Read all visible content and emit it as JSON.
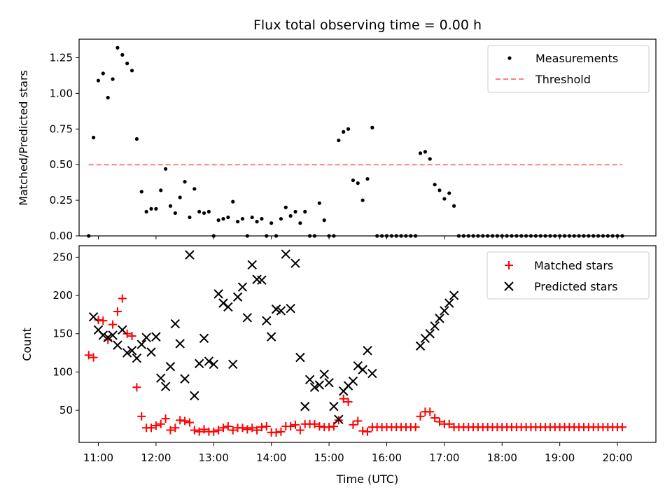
{
  "chart_data": [
    {
      "type": "scatter",
      "title": "Flux total observing time = 0.00 h",
      "ylabel": "Matched/Predicted stars",
      "xlabel": "",
      "xlim": [
        "10:40",
        "20:40"
      ],
      "ylim": [
        0,
        1.38
      ],
      "yticks": [
        "0.00",
        "0.25",
        "0.50",
        "0.75",
        "1.00",
        "1.25"
      ],
      "legend_position": "top-right",
      "series": [
        {
          "name": "Measurements",
          "marker": "dot",
          "color": "#000000",
          "x": [
            "10:50",
            "10:55",
            "11:00",
            "11:05",
            "11:10",
            "11:15",
            "11:20",
            "11:25",
            "11:30",
            "11:35",
            "11:40",
            "11:45",
            "11:50",
            "11:55",
            "12:00",
            "12:05",
            "12:10",
            "12:15",
            "12:20",
            "12:25",
            "12:30",
            "12:35",
            "12:40",
            "12:45",
            "12:50",
            "12:55",
            "13:00",
            "13:05",
            "13:10",
            "13:15",
            "13:20",
            "13:25",
            "13:30",
            "13:35",
            "13:40",
            "13:45",
            "13:50",
            "13:55",
            "14:00",
            "14:05",
            "14:10",
            "14:15",
            "14:20",
            "14:25",
            "14:30",
            "14:35",
            "14:40",
            "14:45",
            "14:50",
            "14:55",
            "15:00",
            "15:05",
            "15:10",
            "15:15",
            "15:20",
            "15:25",
            "15:30",
            "15:35",
            "15:40",
            "15:45",
            "15:50",
            "15:55",
            "16:00",
            "16:05",
            "16:10",
            "16:15",
            "16:20",
            "16:25",
            "16:30",
            "16:35",
            "16:40",
            "16:45",
            "16:50",
            "16:55",
            "17:00",
            "17:05",
            "17:10",
            "17:15",
            "17:20",
            "17:25",
            "17:30",
            "17:35",
            "17:40",
            "17:45",
            "17:50",
            "17:55",
            "18:00",
            "18:05",
            "18:10",
            "18:15",
            "18:20",
            "18:25",
            "18:30",
            "18:35",
            "18:40",
            "18:45",
            "18:50",
            "18:55",
            "19:00",
            "19:05",
            "19:10",
            "19:15",
            "19:20",
            "19:25",
            "19:30",
            "19:35",
            "19:40",
            "19:45",
            "19:50",
            "19:55",
            "20:00",
            "20:05"
          ],
          "y": [
            0.0,
            0.69,
            1.09,
            1.14,
            0.97,
            1.1,
            1.32,
            1.27,
            1.21,
            1.16,
            0.68,
            0.31,
            0.17,
            0.19,
            0.19,
            0.32,
            0.47,
            0.21,
            0.16,
            0.27,
            0.38,
            0.13,
            0.33,
            0.17,
            0.16,
            0.17,
            0.0,
            0.11,
            0.12,
            0.13,
            0.24,
            0.1,
            0.12,
            0.0,
            0.13,
            0.1,
            0.12,
            0.0,
            0.09,
            0.0,
            0.12,
            0.2,
            0.14,
            0.17,
            0.09,
            0.17,
            0.0,
            0.0,
            0.23,
            0.11,
            0.0,
            0.0,
            0.67,
            0.73,
            0.75,
            0.39,
            0.37,
            0.25,
            0.4,
            0.76,
            0.0,
            0.0,
            0.0,
            0.0,
            0.0,
            0.0,
            0.0,
            0.0,
            0.0,
            0.58,
            0.59,
            0.54,
            0.36,
            0.32,
            0.26,
            0.3,
            0.21,
            0.0,
            0.0,
            0.0,
            0.0,
            0.0,
            0.0,
            0.0,
            0.0,
            0.0,
            0.0,
            0.0,
            0.0,
            0.0,
            0.0,
            0.0,
            0.0,
            0.0,
            0.0,
            0.0,
            0.0,
            0.0,
            0.0,
            0.0,
            0.0,
            0.0,
            0.0,
            0.0,
            0.0,
            0.0,
            0.0,
            0.0,
            0.0,
            0.0,
            0.0,
            0.0
          ]
        },
        {
          "name": "Threshold",
          "marker": "dashed-line",
          "color": "#ff7f7f",
          "x": [
            "10:50",
            "20:05"
          ],
          "y": [
            0.5,
            0.5
          ]
        }
      ]
    },
    {
      "type": "scatter",
      "title": "",
      "ylabel": "Count",
      "xlabel": "Time (UTC)",
      "xlim": [
        "10:40",
        "20:40"
      ],
      "ylim": [
        8,
        265
      ],
      "yticks": [
        "50",
        "100",
        "150",
        "200",
        "250"
      ],
      "xticks": [
        "11:00",
        "12:00",
        "13:00",
        "14:00",
        "15:00",
        "16:00",
        "17:00",
        "18:00",
        "19:00",
        "20:00"
      ],
      "legend_position": "top-right",
      "series": [
        {
          "name": "Matched stars",
          "marker": "plus",
          "color": "#ff0000",
          "x": [
            "10:50",
            "10:55",
            "11:00",
            "11:05",
            "11:10",
            "11:15",
            "11:20",
            "11:25",
            "11:30",
            "11:35",
            "11:40",
            "11:45",
            "11:50",
            "11:55",
            "12:00",
            "12:05",
            "12:10",
            "12:15",
            "12:20",
            "12:25",
            "12:30",
            "12:35",
            "12:40",
            "12:45",
            "12:50",
            "12:55",
            "13:00",
            "13:05",
            "13:10",
            "13:15",
            "13:20",
            "13:25",
            "13:30",
            "13:35",
            "13:40",
            "13:45",
            "13:50",
            "13:55",
            "14:00",
            "14:05",
            "14:10",
            "14:15",
            "14:20",
            "14:25",
            "14:30",
            "14:35",
            "14:40",
            "14:45",
            "14:50",
            "14:55",
            "15:00",
            "15:05",
            "15:10",
            "15:15",
            "15:20",
            "15:25",
            "15:30",
            "15:35",
            "15:40",
            "15:45",
            "15:50",
            "15:55",
            "16:00",
            "16:05",
            "16:10",
            "16:15",
            "16:20",
            "16:25",
            "16:30",
            "16:35",
            "16:40",
            "16:45",
            "16:50",
            "16:55",
            "17:00",
            "17:05",
            "17:10",
            "17:15",
            "17:20",
            "17:25",
            "17:30",
            "17:35",
            "17:40",
            "17:45",
            "17:50",
            "17:55",
            "18:00",
            "18:05",
            "18:10",
            "18:15",
            "18:20",
            "18:25",
            "18:30",
            "18:35",
            "18:40",
            "18:45",
            "18:50",
            "18:55",
            "19:00",
            "19:05",
            "19:10",
            "19:15",
            "19:20",
            "19:25",
            "19:30",
            "19:35",
            "19:40",
            "19:45",
            "19:50",
            "19:55",
            "20:00",
            "20:05"
          ],
          "y": [
            122,
            119,
            168,
            167,
            142,
            162,
            179,
            196,
            150,
            147,
            80,
            42,
            27,
            27,
            30,
            32,
            39,
            24,
            27,
            37,
            36,
            34,
            24,
            22,
            25,
            22,
            22,
            24,
            27,
            29,
            24,
            27,
            27,
            25,
            27,
            24,
            28,
            29,
            21,
            21,
            22,
            29,
            29,
            31,
            24,
            32,
            32,
            32,
            29,
            28,
            28,
            29,
            37,
            65,
            61,
            31,
            36,
            23,
            22,
            28,
            28,
            28,
            28,
            28,
            28,
            28,
            28,
            28,
            28,
            42,
            48,
            48,
            40,
            35,
            32,
            32,
            28,
            28,
            28,
            28,
            28,
            28,
            28,
            28,
            28,
            28,
            28,
            28,
            28,
            28,
            28,
            28,
            28,
            28,
            28,
            28,
            28,
            28,
            28,
            28,
            28,
            28,
            28,
            28,
            28,
            28,
            28,
            28,
            28,
            28,
            28,
            28
          ]
        },
        {
          "name": "Predicted stars",
          "marker": "x",
          "color": "#000000",
          "x": [
            "10:55",
            "11:00",
            "11:05",
            "11:10",
            "11:15",
            "11:20",
            "11:25",
            "11:30",
            "11:35",
            "11:40",
            "11:45",
            "11:50",
            "11:55",
            "12:00",
            "12:05",
            "12:10",
            "12:15",
            "12:20",
            "12:25",
            "12:30",
            "12:35",
            "12:40",
            "12:45",
            "12:50",
            "12:55",
            "13:00",
            "13:05",
            "13:10",
            "13:15",
            "13:20",
            "13:25",
            "13:30",
            "13:35",
            "13:40",
            "13:45",
            "13:50",
            "13:55",
            "14:00",
            "14:05",
            "14:10",
            "14:15",
            "14:20",
            "14:25",
            "14:30",
            "14:35",
            "14:40",
            "14:45",
            "14:50",
            "14:55",
            "15:00",
            "15:05",
            "15:10",
            "15:15",
            "15:20",
            "15:25",
            "15:30",
            "15:35",
            "15:40",
            "15:45",
            "16:35",
            "16:40",
            "16:45",
            "16:50",
            "16:55",
            "17:00",
            "17:05",
            "17:10"
          ],
          "y": [
            172,
            155,
            148,
            145,
            148,
            135,
            155,
            125,
            128,
            118,
            136,
            145,
            126,
            146,
            92,
            81,
            107,
            163,
            137,
            91,
            253,
            69,
            111,
            144,
            114,
            110,
            202,
            190,
            185,
            110,
            198,
            211,
            171,
            240,
            221,
            220,
            167,
            146,
            182,
            180,
            254,
            183,
            242,
            119,
            55,
            90,
            80,
            83,
            97,
            86,
            55,
            38,
            75,
            82,
            88,
            108,
            103,
            128,
            98,
            134,
            144,
            150,
            160,
            170,
            180,
            190,
            200
          ]
        }
      ]
    }
  ]
}
